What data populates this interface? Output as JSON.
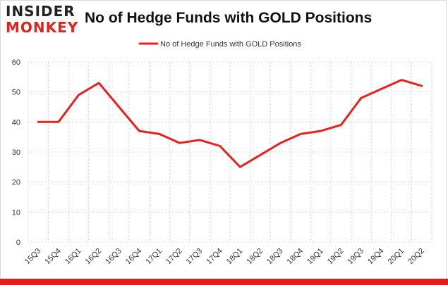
{
  "header": {
    "logo_top": "INSIDER",
    "logo_bottom": "MONKEY",
    "title": "No of Hedge Funds with GOLD Positions"
  },
  "colors": {
    "series": "#e8211d",
    "brand_red": "#e21e1e",
    "grid": "#d9d9d9"
  },
  "chart_data": {
    "type": "line",
    "title": "No of Hedge Funds with GOLD Positions",
    "xlabel": "",
    "ylabel": "",
    "ylim": [
      0,
      60
    ],
    "yticks": [
      0,
      10,
      20,
      30,
      40,
      50,
      60
    ],
    "grid": true,
    "legend_position": "top-center",
    "categories": [
      "15Q3",
      "15Q4",
      "16Q1",
      "16Q2",
      "16Q3",
      "16Q4",
      "17Q1",
      "17Q2",
      "17Q3",
      "17Q4",
      "18Q1",
      "18Q2",
      "18Q3",
      "18Q4",
      "19Q1",
      "19Q2",
      "19Q3",
      "19Q4",
      "20Q1",
      "20Q2"
    ],
    "series": [
      {
        "name": "No of Hedge Funds with GOLD Positions",
        "values": [
          40,
          40,
          49,
          53,
          45,
          37,
          36,
          33,
          34,
          32,
          25,
          29,
          33,
          36,
          37,
          39,
          48,
          51,
          54,
          52
        ]
      }
    ]
  }
}
